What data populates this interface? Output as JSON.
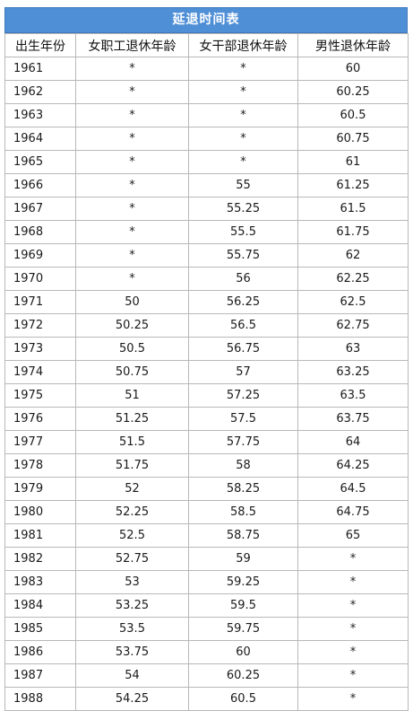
{
  "title": "延退时间表",
  "headers": [
    "出生年份",
    "女职工退休年龄",
    "女干部退休年龄",
    "男性退休年龄"
  ],
  "rows": [
    [
      "1961",
      "*",
      "*",
      "60"
    ],
    [
      "1962",
      "*",
      "*",
      "60.25"
    ],
    [
      "1963",
      "*",
      "*",
      "60.5"
    ],
    [
      "1964",
      "*",
      "*",
      "60.75"
    ],
    [
      "1965",
      "*",
      "*",
      "61"
    ],
    [
      "1966",
      "*",
      "55",
      "61.25"
    ],
    [
      "1967",
      "*",
      "55.25",
      "61.5"
    ],
    [
      "1968",
      "*",
      "55.5",
      "61.75"
    ],
    [
      "1969",
      "*",
      "55.75",
      "62"
    ],
    [
      "1970",
      "*",
      "56",
      "62.25"
    ],
    [
      "1971",
      "50",
      "56.25",
      "62.5"
    ],
    [
      "1972",
      "50.25",
      "56.5",
      "62.75"
    ],
    [
      "1973",
      "50.5",
      "56.75",
      "63"
    ],
    [
      "1974",
      "50.75",
      "57",
      "63.25"
    ],
    [
      "1975",
      "51",
      "57.25",
      "63.5"
    ],
    [
      "1976",
      "51.25",
      "57.5",
      "63.75"
    ],
    [
      "1977",
      "51.5",
      "57.75",
      "64"
    ],
    [
      "1978",
      "51.75",
      "58",
      "64.25"
    ],
    [
      "1979",
      "52",
      "58.25",
      "64.5"
    ],
    [
      "1980",
      "52.25",
      "58.5",
      "64.75"
    ],
    [
      "1981",
      "52.5",
      "58.75",
      "65"
    ],
    [
      "1982",
      "52.75",
      "59",
      "*"
    ],
    [
      "1983",
      "53",
      "59.25",
      "*"
    ],
    [
      "1984",
      "53.25",
      "59.5",
      "*"
    ],
    [
      "1985",
      "53.5",
      "59.75",
      "*"
    ],
    [
      "1986",
      "53.75",
      "60",
      "*"
    ],
    [
      "1987",
      "54",
      "60.25",
      "*"
    ],
    [
      "1988",
      "54.25",
      "60.5",
      "*"
    ]
  ]
}
